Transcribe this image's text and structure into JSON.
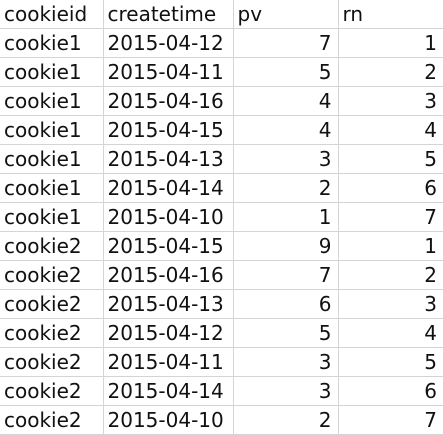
{
  "columns": [
    "cookieid",
    "createtime",
    "pv",
    "rn"
  ],
  "rows": [
    [
      "cookie1",
      "2015-04-12",
      "7",
      "1"
    ],
    [
      "cookie1",
      "2015-04-11",
      "5",
      "2"
    ],
    [
      "cookie1",
      "2015-04-16",
      "4",
      "3"
    ],
    [
      "cookie1",
      "2015-04-15",
      "4",
      "4"
    ],
    [
      "cookie1",
      "2015-04-13",
      "3",
      "5"
    ],
    [
      "cookie1",
      "2015-04-14",
      "2",
      "6"
    ],
    [
      "cookie1",
      "2015-04-10",
      "1",
      "7"
    ],
    [
      "cookie2",
      "2015-04-15",
      "9",
      "1"
    ],
    [
      "cookie2",
      "2015-04-16",
      "7",
      "2"
    ],
    [
      "cookie2",
      "2015-04-13",
      "6",
      "3"
    ],
    [
      "cookie2",
      "2015-04-12",
      "5",
      "4"
    ],
    [
      "cookie2",
      "2015-04-11",
      "3",
      "5"
    ],
    [
      "cookie2",
      "2015-04-14",
      "3",
      "6"
    ],
    [
      "cookie2",
      "2015-04-10",
      "2",
      "7"
    ]
  ]
}
